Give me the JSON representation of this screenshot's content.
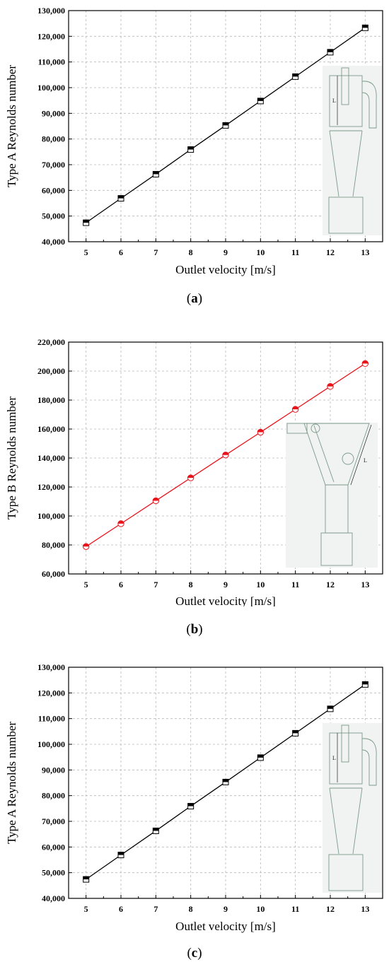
{
  "chart_data": [
    {
      "type": "line",
      "panel_label": "a",
      "xlabel": "Outlet velocity [m/s]",
      "ylabel": "Type A Reynolds number",
      "x": [
        5,
        6,
        7,
        8,
        9,
        10,
        11,
        12,
        13
      ],
      "x_tick_labels": [
        "5",
        "6",
        "7",
        "8",
        "9",
        "10",
        "11",
        "12",
        "13"
      ],
      "xlim": [
        4.5,
        13.5
      ],
      "ylim": [
        40000,
        130000
      ],
      "y_tick_labels": [
        "40,000",
        "50,000",
        "60,000",
        "70,000",
        "80,000",
        "90,000",
        "100,000",
        "110,000",
        "120,000",
        "130,000"
      ],
      "grid": true,
      "series": [
        {
          "values": [
            47400,
            56900,
            66300,
            75900,
            85300,
            94800,
            104300,
            113800,
            123300
          ],
          "color": "#000000",
          "marker": "half-filled-square"
        }
      ],
      "inset": {
        "label": "L",
        "type": "Type A cyclone schematic"
      }
    },
    {
      "type": "line",
      "panel_label": "b",
      "xlabel": "Outlet velocity [m/s]",
      "ylabel": "Type B Reynolds number",
      "x": [
        5,
        6,
        7,
        8,
        9,
        10,
        11,
        12,
        13
      ],
      "x_tick_labels": [
        "5",
        "6",
        "7",
        "8",
        "9",
        "10",
        "11",
        "12",
        "13"
      ],
      "xlim": [
        4.5,
        13.5
      ],
      "ylim": [
        60000,
        220000
      ],
      "y_tick_labels": [
        "60,000",
        "80,000",
        "100,000",
        "120,000",
        "140,000",
        "160,000",
        "180,000",
        "200,000",
        "220,000"
      ],
      "grid": true,
      "series": [
        {
          "values": [
            78900,
            94700,
            110500,
            126300,
            142100,
            157800,
            173600,
            189400,
            205200
          ],
          "color": "#e8141c",
          "marker": "half-filled-circle"
        }
      ],
      "inset": {
        "label": "L",
        "type": "Type B cyclone schematic"
      }
    },
    {
      "type": "line",
      "panel_label": "c",
      "xlabel": "Outlet velocity [m/s]",
      "ylabel": "Type A Reynolds number",
      "x": [
        5,
        6,
        7,
        8,
        9,
        10,
        11,
        12,
        13
      ],
      "x_tick_labels": [
        "5",
        "6",
        "7",
        "8",
        "9",
        "10",
        "11",
        "12",
        "13"
      ],
      "xlim": [
        4.5,
        13.5
      ],
      "ylim": [
        40000,
        130000
      ],
      "y_tick_labels": [
        "40,000",
        "50,000",
        "60,000",
        "70,000",
        "80,000",
        "90,000",
        "100,000",
        "110,000",
        "120,000",
        "130,000"
      ],
      "grid": true,
      "series": [
        {
          "values": [
            47400,
            56900,
            66300,
            75900,
            85300,
            94800,
            104300,
            113800,
            123300
          ],
          "color": "#000000",
          "marker": "half-filled-square"
        }
      ],
      "inset": {
        "label": "L",
        "type": "Type A cyclone schematic"
      }
    }
  ],
  "captions": [
    "a",
    "b",
    "c"
  ]
}
